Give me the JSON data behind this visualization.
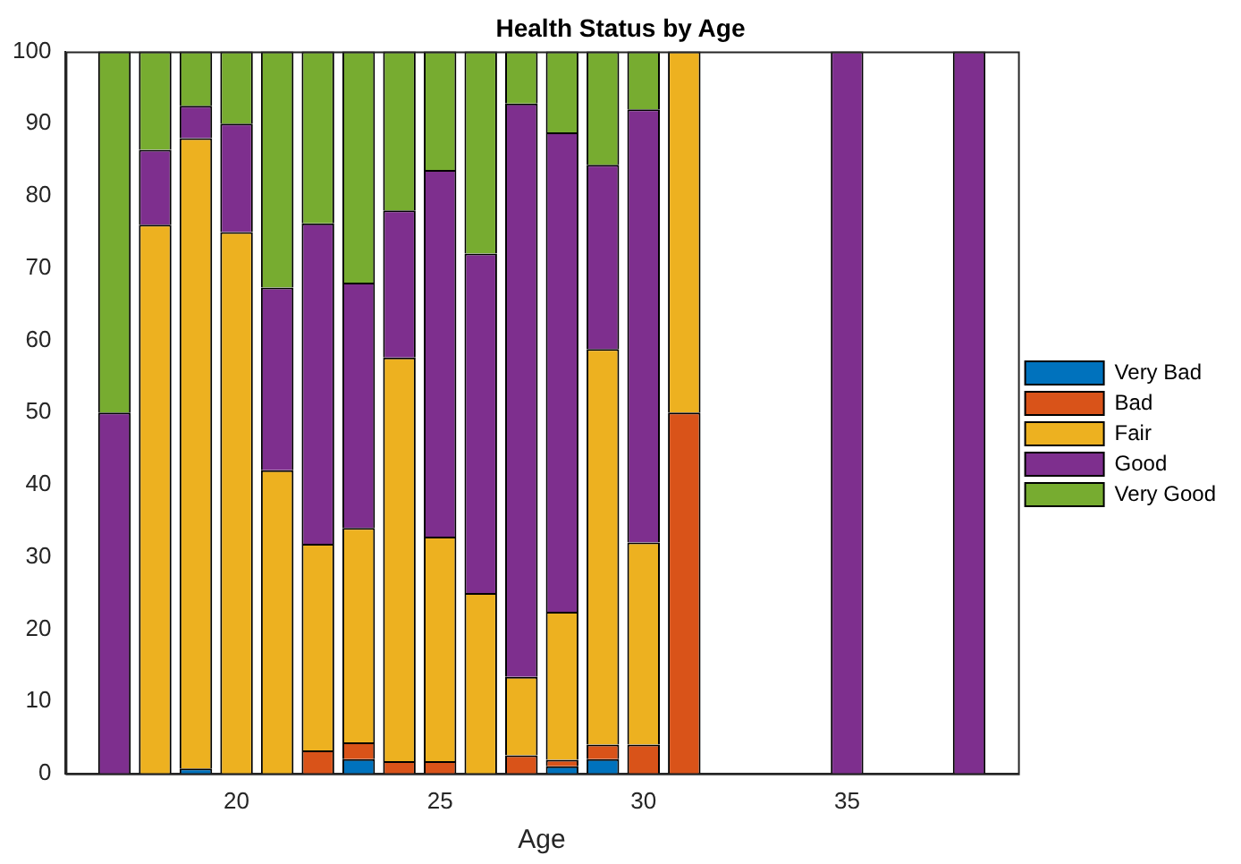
{
  "chart_data": {
    "type": "bar",
    "title": "Health Status by Age",
    "xlabel": "Age",
    "stacked": true,
    "legend": "right",
    "grid": false,
    "x": [
      17,
      18,
      19,
      20,
      21,
      22,
      23,
      24,
      25,
      26,
      27,
      28,
      29,
      30,
      31,
      32,
      33,
      34,
      35,
      36,
      37,
      38
    ],
    "xlim": [
      15.8,
      39.2
    ],
    "xticks": [
      20,
      25,
      30,
      35
    ],
    "ylim": [
      0,
      100
    ],
    "yticks": [
      0,
      10,
      20,
      30,
      40,
      50,
      60,
      70,
      80,
      90,
      100
    ],
    "series": [
      {
        "name": "Very Bad",
        "color": "#0072bd",
        "values": [
          0,
          0,
          0.7,
          0,
          0,
          0,
          2,
          0,
          0,
          0,
          0,
          1,
          2,
          0,
          0,
          null,
          null,
          null,
          0,
          null,
          null,
          0
        ]
      },
      {
        "name": "Bad",
        "color": "#d95319",
        "values": [
          0,
          0,
          0,
          0,
          0,
          3.2,
          2.3,
          1.7,
          1.7,
          0,
          2.5,
          0.9,
          2,
          4,
          50,
          null,
          null,
          null,
          0,
          null,
          null,
          0
        ]
      },
      {
        "name": "Fair",
        "color": "#edb120",
        "values": [
          0,
          76,
          87.3,
          75,
          42,
          28.6,
          29.7,
          55.9,
          31.1,
          25,
          10.9,
          20.5,
          54.8,
          28,
          50,
          null,
          null,
          null,
          0,
          null,
          null,
          0
        ]
      },
      {
        "name": "Good",
        "color": "#7e2f8e",
        "values": [
          50,
          10.4,
          4.5,
          15,
          25.3,
          44.4,
          34,
          20.4,
          50.8,
          47,
          79.4,
          66.4,
          25.5,
          60,
          0,
          null,
          null,
          null,
          100,
          null,
          null,
          100
        ]
      },
      {
        "name": "Very Good",
        "color": "#77ac30",
        "values": [
          50,
          13.6,
          7.5,
          10,
          32.7,
          23.8,
          32,
          22,
          16.4,
          28,
          7.2,
          11.2,
          15.7,
          8,
          0,
          null,
          null,
          null,
          0,
          null,
          null,
          0
        ]
      }
    ]
  }
}
